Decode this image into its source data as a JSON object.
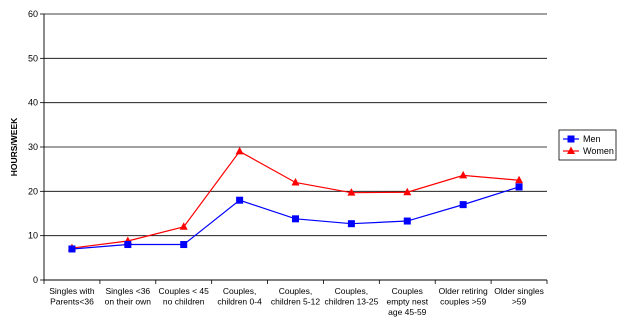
{
  "chart_data": {
    "type": "line",
    "title": "",
    "xlabel": "",
    "ylabel": "HOURS/WEEK",
    "ylim": [
      0,
      60
    ],
    "yticks": [
      0,
      10,
      20,
      30,
      40,
      50,
      60
    ],
    "grid": "horizontal",
    "legend_position": "right",
    "categories": [
      [
        "Singles with",
        "Parents<36"
      ],
      [
        "Singles  <36",
        "on their own"
      ],
      [
        "Couples < 45",
        "no children"
      ],
      [
        "Couples,",
        "children 0-4"
      ],
      [
        "Couples,",
        "children 5-12"
      ],
      [
        "Couples,",
        "children 13-25"
      ],
      [
        "Couples",
        "empty nest",
        "age 45-59"
      ],
      [
        "Older retiring",
        "couples >59"
      ],
      [
        "Older singles",
        ">59"
      ]
    ],
    "series": [
      {
        "name": "Men",
        "color": "#0000ff",
        "marker": "square",
        "values": [
          7,
          8,
          8,
          18,
          13.8,
          12.7,
          13.3,
          17,
          21
        ]
      },
      {
        "name": "Women",
        "color": "#ff0000",
        "marker": "triangle",
        "values": [
          7.2,
          8.8,
          12,
          29,
          22,
          19.7,
          19.8,
          23.6,
          22.5
        ]
      }
    ]
  }
}
